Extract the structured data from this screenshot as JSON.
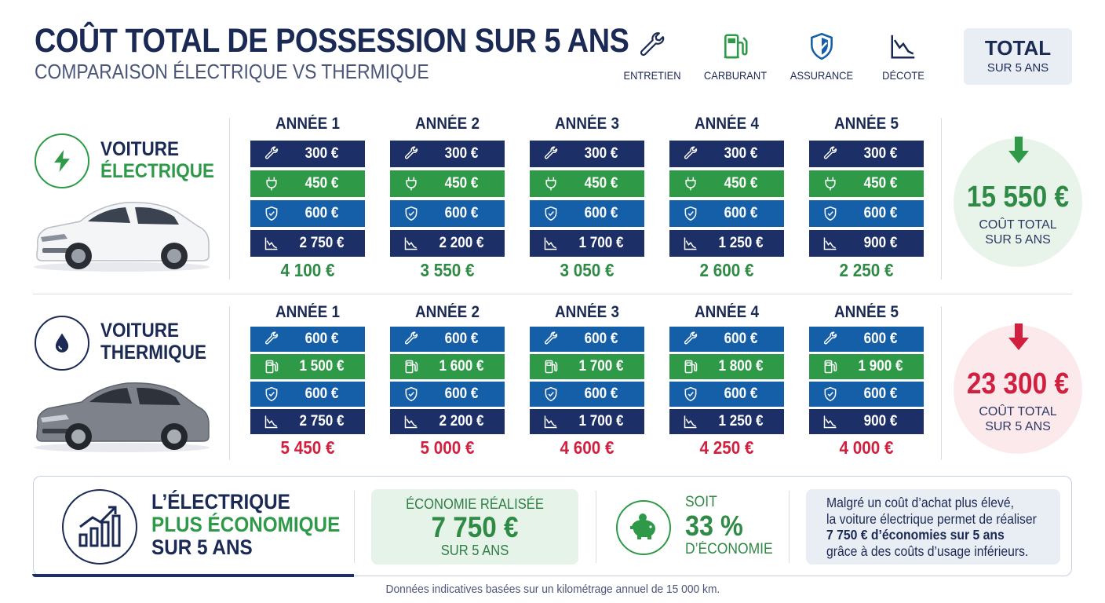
{
  "header": {
    "title": "COÛT TOTAL DE POSSESSION SUR 5 ANS",
    "subtitle": "COMPARAISON ÉLECTRIQUE VS THERMIQUE"
  },
  "legend": [
    {
      "label": "ENTRETIEN",
      "icon": "wrench-icon",
      "color": "#1c2f66"
    },
    {
      "label": "CARBURANT",
      "icon": "fuel-pump-icon",
      "color": "#2e9a48"
    },
    {
      "label": "ASSURANCE",
      "icon": "shield-icon",
      "color": "#155fa8"
    },
    {
      "label": "DÉCOTE",
      "icon": "depreciation-chart-icon",
      "color": "#1c2f66"
    }
  ],
  "total_box": {
    "title": "TOTAL",
    "subtitle": "SUR 5 ANS"
  },
  "electric": {
    "name_line1": "VOITURE",
    "name_line2": "ÉLECTRIQUE",
    "icon": "lightning-bolt-icon",
    "accent": "#2e9a48",
    "years": [
      {
        "label": "ANNÉE 1",
        "entretien": "300 €",
        "energie": "450 €",
        "assurance": "600 €",
        "decote": "2 750 €",
        "total": "4 100 €"
      },
      {
        "label": "ANNÉE 2",
        "entretien": "300 €",
        "energie": "450 €",
        "assurance": "600 €",
        "decote": "2 200 €",
        "total": "3 550 €"
      },
      {
        "label": "ANNÉE 3",
        "entretien": "300 €",
        "energie": "450 €",
        "assurance": "600 €",
        "decote": "1 700 €",
        "total": "3 050 €"
      },
      {
        "label": "ANNÉE 4",
        "entretien": "300 €",
        "energie": "450 €",
        "assurance": "600 €",
        "decote": "1 250 €",
        "total": "2 600 €"
      },
      {
        "label": "ANNÉE 5",
        "entretien": "300 €",
        "energie": "450 €",
        "assurance": "600 €",
        "decote": "900 €",
        "total": "2 250 €"
      }
    ],
    "total_amount": "15 550 €",
    "total_label_line1": "COÛT TOTAL",
    "total_label_line2": "SUR 5 ANS"
  },
  "thermal": {
    "name_line1": "VOITURE",
    "name_line2": "THERMIQUE",
    "icon": "fuel-drop-icon",
    "accent": "#d11f3f",
    "years": [
      {
        "label": "ANNÉE 1",
        "entretien": "600 €",
        "energie": "1 500 €",
        "assurance": "600 €",
        "decote": "2 750 €",
        "total": "5 450 €"
      },
      {
        "label": "ANNÉE 2",
        "entretien": "600 €",
        "energie": "1 600 €",
        "assurance": "600 €",
        "decote": "2 200 €",
        "total": "5 000 €"
      },
      {
        "label": "ANNÉE 3",
        "entretien": "600 €",
        "energie": "1 700 €",
        "assurance": "600 €",
        "decote": "1 700 €",
        "total": "4 600 €"
      },
      {
        "label": "ANNÉE 4",
        "entretien": "600 €",
        "energie": "1 800 €",
        "assurance": "600 €",
        "decote": "1 250 €",
        "total": "4 250 €"
      },
      {
        "label": "ANNÉE 5",
        "entretien": "600 €",
        "energie": "1 900 €",
        "assurance": "600 €",
        "decote": "900 €",
        "total": "4 000 €"
      }
    ],
    "total_amount": "23 300 €",
    "total_label_line1": "COÛT TOTAL",
    "total_label_line2": "SUR 5 ANS"
  },
  "conclusion": {
    "line1": "L’ÉLECTRIQUE",
    "line2": "PLUS ÉCONOMIQUE",
    "line3": "SUR 5 ANS",
    "icon": "growth-chart-icon",
    "savings_label": "ÉCONOMIE RÉALISÉE",
    "savings_amount": "7 750 €",
    "savings_period": "SUR 5 ANS",
    "percent_prefix": "SOIT",
    "percent_value": "33 %",
    "percent_suffix": "D’ÉCONOMIE",
    "percent_icon": "piggy-bank-icon",
    "note_line1": "Malgré un coût d’achat plus élevé,",
    "note_line2": "la voiture électrique permet de réaliser",
    "note_line3": "7 750 € d’économies sur 5 ans",
    "note_line4": "grâce à des coûts d’usage inférieurs."
  },
  "footnote": "Données indicatives basées sur un kilométrage annuel de 15 000 km."
}
